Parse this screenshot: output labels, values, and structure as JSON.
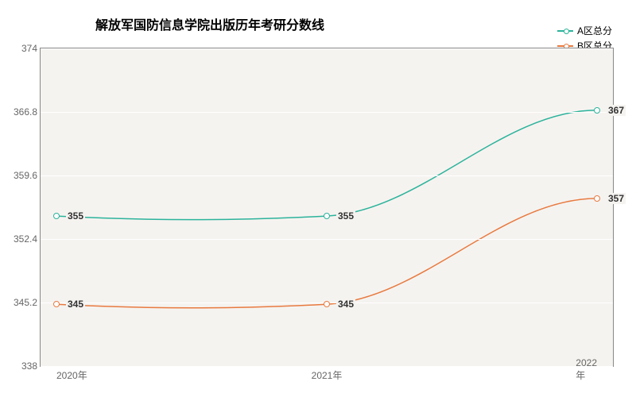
{
  "chart": {
    "type": "line",
    "title": "解放军国防信息学院出版历年考研分数线",
    "title_fontsize": 16,
    "background_color": "#ffffff",
    "plot_background": "#f5f3f0",
    "grid_color": "#ffffff",
    "axis_color": "#888888",
    "label_fontsize": 12,
    "data_label_fontsize": 12,
    "x_categories": [
      "2020年",
      "2021年",
      "2022年"
    ],
    "ylim": [
      338,
      374
    ],
    "yticks": [
      338,
      345.2,
      352.4,
      359.6,
      366.8,
      374
    ],
    "series": [
      {
        "name": "A区总分",
        "color": "#2bb39b",
        "line_width": 1.5,
        "marker_style": "circle",
        "values": [
          355,
          355,
          367
        ]
      },
      {
        "name": "B区总分",
        "color": "#e87a3f",
        "line_width": 1.5,
        "marker_style": "circle",
        "values": [
          345,
          345,
          357
        ]
      }
    ],
    "legend_position": "top-right",
    "smooth": true
  }
}
